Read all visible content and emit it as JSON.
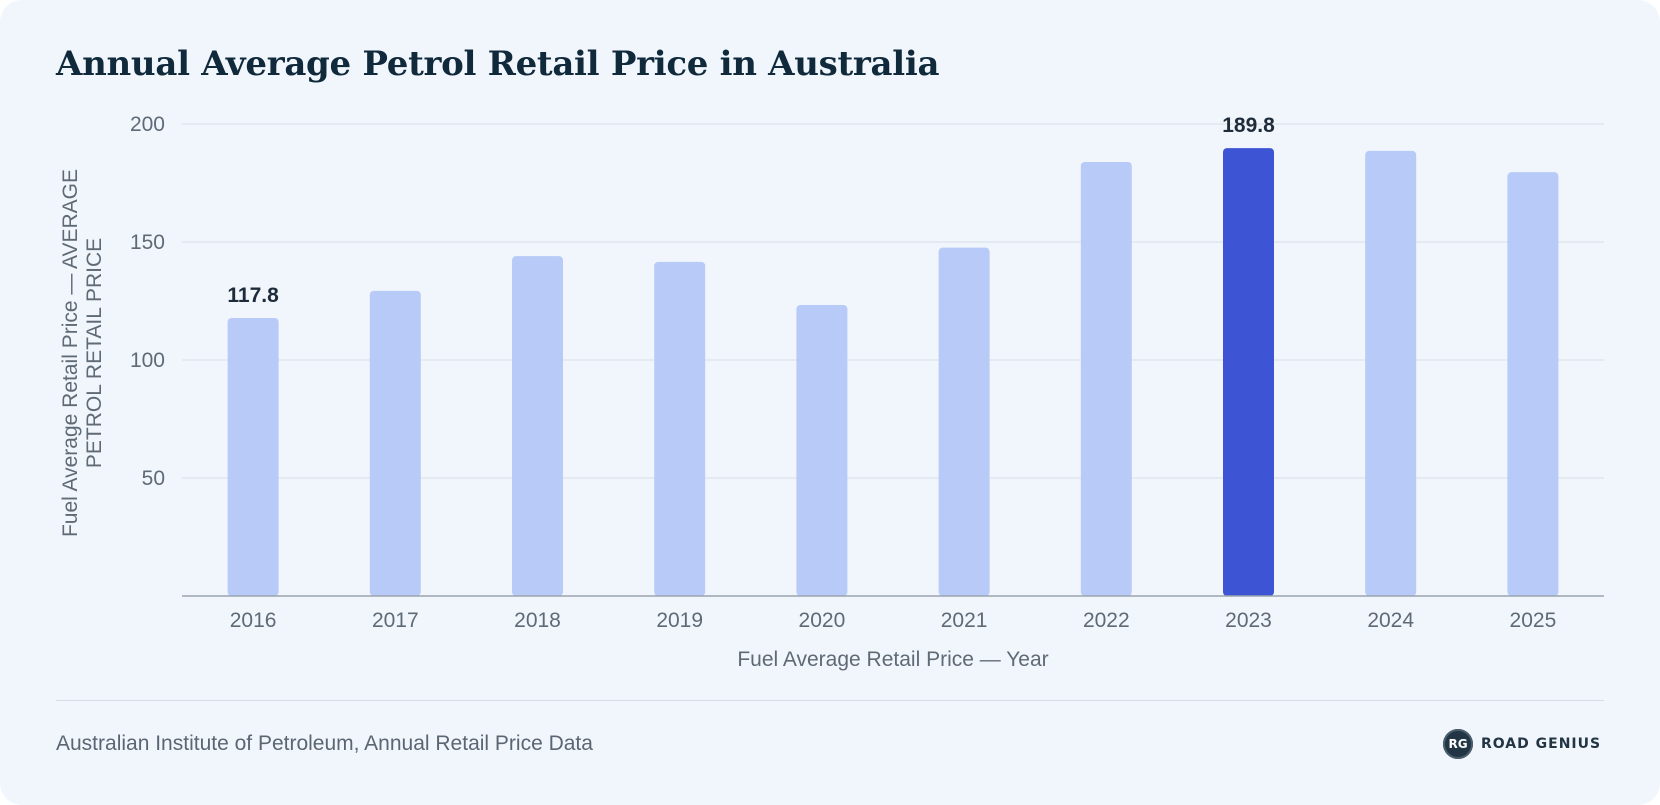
{
  "title": "Annual Average Petrol Retail Price in Australia",
  "source": "Australian Institute of Petroleum, Annual Retail Price Data",
  "brand": {
    "logo_text": "RG",
    "name": "ROAD GENIUS"
  },
  "colors": {
    "bar": "#b8caf8",
    "highlight": "#3d55d4",
    "grid": "#dde3ea",
    "axis": "#9aa3ad",
    "tick": "#5f6a75",
    "label_dark": "#1e2b3a"
  },
  "chart_data": {
    "type": "bar",
    "categories": [
      "2016",
      "2017",
      "2018",
      "2019",
      "2020",
      "2021",
      "2022",
      "2023",
      "2024",
      "2025"
    ],
    "values": [
      117.8,
      129.3,
      144.0,
      141.6,
      123.3,
      147.6,
      183.9,
      189.8,
      188.6,
      179.6
    ],
    "highlight_index": 7,
    "data_labels": {
      "0": "117.8",
      "7": "189.8"
    },
    "xlabel": "Fuel Average Retail Price — Year",
    "ylabel": [
      "Fuel Average Retail Price — AVERAGE",
      "PETROL RETAIL PRICE"
    ],
    "yticks": [
      "50",
      "100",
      "150",
      "200"
    ],
    "ylim": [
      0,
      200
    ],
    "grid": true
  }
}
